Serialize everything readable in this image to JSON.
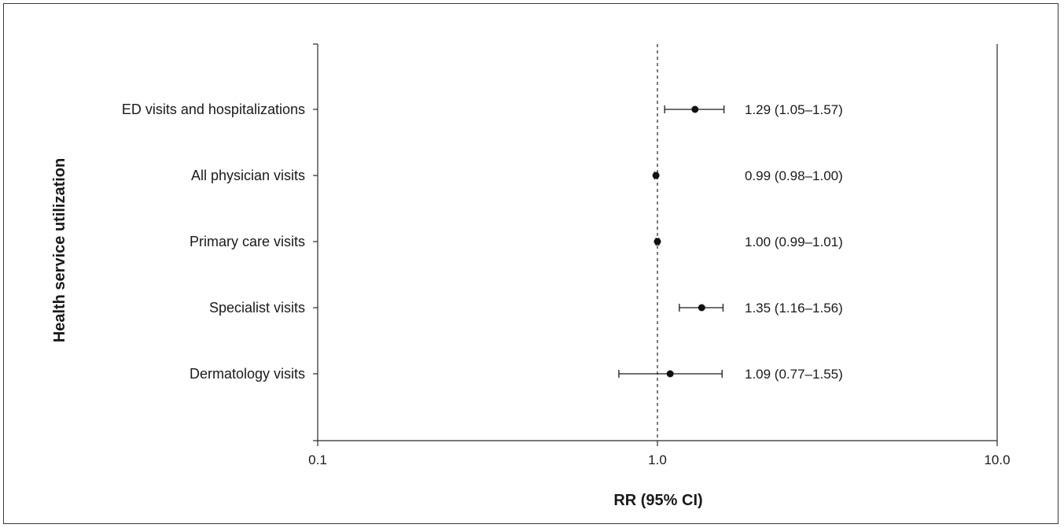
{
  "chart_data": {
    "type": "forest",
    "xlabel": "RR (95% CI)",
    "ylabel": "Health service utilization",
    "x_scale": "log",
    "xlim": [
      0.1,
      10.0
    ],
    "x_ticks": [
      "0.1",
      "1.0",
      "10.0"
    ],
    "reference_line": 1.0,
    "rows": [
      {
        "label": "ED visits and hospitalizations",
        "rr": 1.29,
        "lo": 1.05,
        "hi": 1.57,
        "text": "1.29 (1.05–1.57)"
      },
      {
        "label": "All physician visits",
        "rr": 0.99,
        "lo": 0.98,
        "hi": 1.0,
        "text": "0.99 (0.98–1.00)"
      },
      {
        "label": "Primary care visits",
        "rr": 1.0,
        "lo": 0.99,
        "hi": 1.01,
        "text": "1.00 (0.99–1.01)"
      },
      {
        "label": "Specialist visits",
        "rr": 1.35,
        "lo": 1.16,
        "hi": 1.56,
        "text": "1.35 (1.16–1.56)"
      },
      {
        "label": "Dermatology visits",
        "rr": 1.09,
        "lo": 0.77,
        "hi": 1.55,
        "text": "1.09 (0.77–1.55)"
      }
    ]
  }
}
